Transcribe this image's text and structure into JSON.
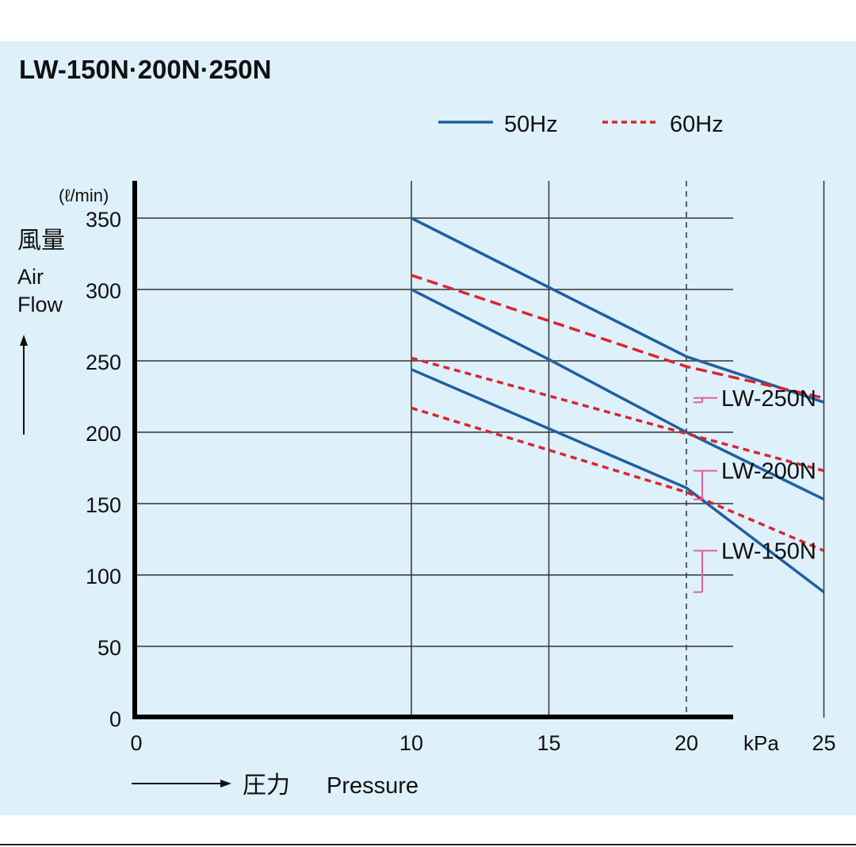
{
  "chart_data": {
    "type": "line",
    "title": "LW-150N·200N·250N",
    "xlabel_jp": "圧力",
    "xlabel": "Pressure",
    "xunit": "kPa",
    "ylabel_jp": "風量",
    "ylabel": "Air Flow",
    "yunit": "(ℓ/min)",
    "xlim": [
      0,
      25
    ],
    "ylim": [
      0,
      350
    ],
    "xticks": [
      0,
      10,
      15,
      20,
      25
    ],
    "yticks": [
      0,
      50,
      100,
      150,
      200,
      250,
      300,
      350
    ],
    "grid": true,
    "legend_position": "top-right",
    "legend": [
      {
        "label": "50Hz",
        "style": "solid",
        "color": "#1f5fa0"
      },
      {
        "label": "60Hz",
        "style": "dashed",
        "color": "#d8262e"
      }
    ],
    "series": [
      {
        "model": "LW-250N",
        "freq": "50Hz",
        "x": [
          10,
          20,
          25
        ],
        "y": [
          350,
          253,
          221
        ]
      },
      {
        "model": "LW-250N",
        "freq": "60Hz",
        "x": [
          10,
          20,
          25
        ],
        "y": [
          310,
          246,
          224
        ]
      },
      {
        "model": "LW-200N",
        "freq": "50Hz",
        "x": [
          10,
          15,
          20,
          25
        ],
        "y": [
          300,
          251,
          200,
          153
        ]
      },
      {
        "model": "LW-200N",
        "freq": "60Hz",
        "x": [
          10,
          20,
          25
        ],
        "y": [
          252,
          199,
          173
        ]
      },
      {
        "model": "LW-150N",
        "freq": "50Hz",
        "x": [
          10,
          20,
          25
        ],
        "y": [
          244,
          161,
          88
        ]
      },
      {
        "model": "LW-150N",
        "freq": "60Hz",
        "x": [
          10,
          20,
          25
        ],
        "y": [
          217,
          158,
          117
        ]
      }
    ],
    "model_labels": [
      "LW-250N",
      "LW-200N",
      "LW-150N"
    ],
    "bracket_color": "#e0609a"
  }
}
